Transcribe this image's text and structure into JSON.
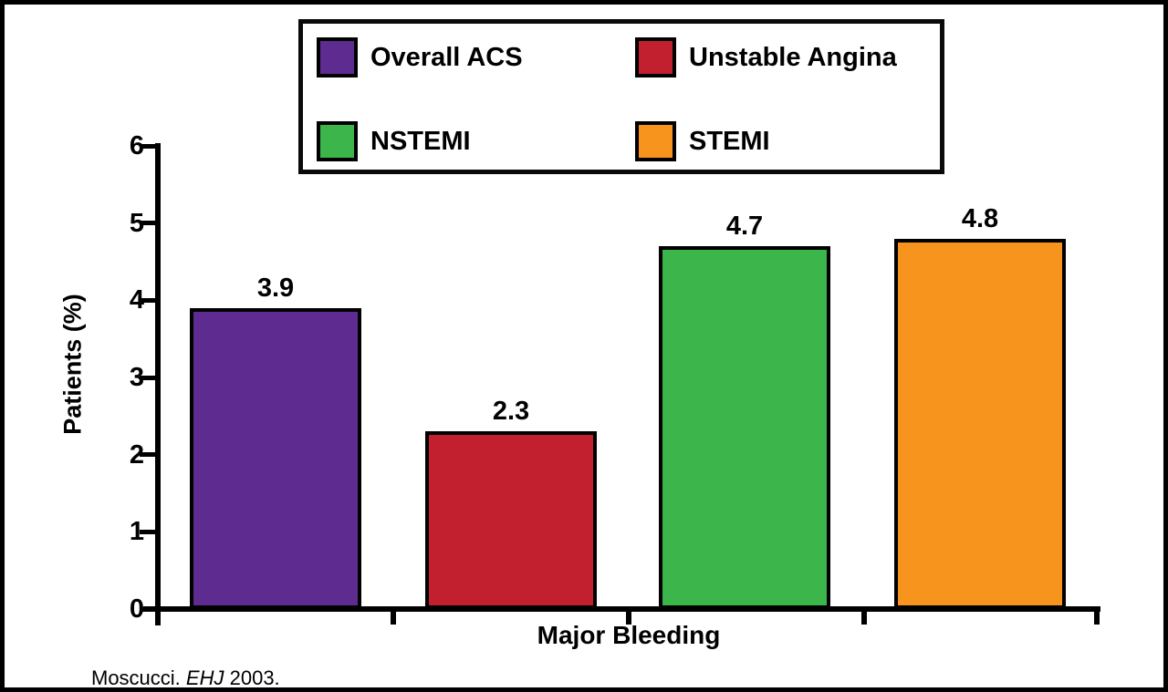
{
  "figure": {
    "citation": {
      "author": "Moscucci.",
      "journal": "EHJ",
      "year": "2003."
    }
  },
  "chart_data": {
    "type": "bar",
    "title": "",
    "xlabel": "Major Bleeding",
    "ylabel": "Patients (%)",
    "ylim": [
      0,
      6
    ],
    "yticks": [
      0,
      1,
      2,
      3,
      4,
      5,
      6
    ],
    "categories": [
      "Major Bleeding"
    ],
    "series": [
      {
        "name": "Overall ACS",
        "color": "#5E2C91",
        "values": [
          3.9
        ]
      },
      {
        "name": "Unstable Angina",
        "color": "#C2202F",
        "values": [
          2.3
        ]
      },
      {
        "name": "NSTEMI",
        "color": "#3CB54B",
        "values": [
          4.7
        ]
      },
      {
        "name": "STEMI",
        "color": "#F7941E",
        "values": [
          4.8
        ]
      }
    ],
    "legend_position": "top",
    "grid": false
  }
}
